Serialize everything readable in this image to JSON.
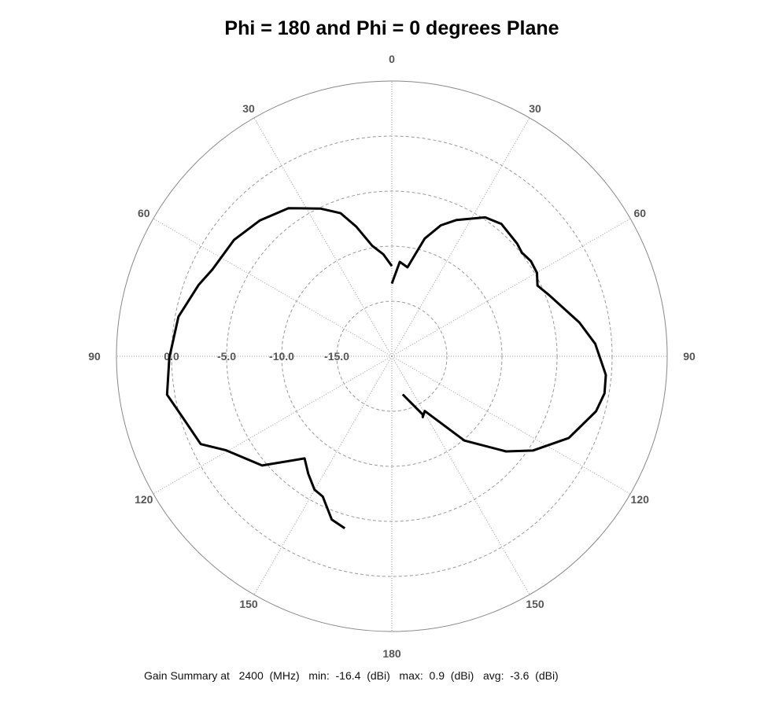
{
  "chart_data": {
    "type": "polar-line",
    "title": "Phi = 180 and Phi = 0 degrees Plane",
    "angle_labels": [
      "0",
      "30",
      "60",
      "90",
      "120",
      "150",
      "180",
      "150",
      "120",
      "90",
      "60",
      "30"
    ],
    "radial_labels": [
      "0.0",
      "-5.0",
      "-10.0",
      "-15.0"
    ],
    "radial_range": [
      -20,
      5
    ],
    "radial_ticks": [
      -15,
      -10,
      -5,
      0
    ],
    "grid": true,
    "line_color": "#000000",
    "series": [
      {
        "side": "right (phi = 0)",
        "theta": [
          0,
          4.8,
          10,
          14.2,
          15.6,
          20.5,
          25.4,
          33.9,
          39.6,
          48,
          51.5,
          55.6,
          60.1,
          64.1,
          68.6,
          79.8,
          86.5,
          95,
          99.9,
          105.1,
          114.8,
          123.8,
          129.8,
          139.3,
          149,
          153.1,
          152.1,
          164.1
        ],
        "gain": [
          -13.4,
          -11.4,
          -11.8,
          -9.8,
          -8.9,
          -7.3,
          -6.3,
          -4.8,
          -4.4,
          -4.7,
          -4.9,
          -4.7,
          -4.8,
          -5.3,
          -4.7,
          -2.7,
          -1.5,
          -0.5,
          -0.4,
          -0.8,
          -2.3,
          -4.6,
          -6.5,
          -9.9,
          -14.2,
          -13.8,
          -14.0,
          -16.4
        ]
      },
      {
        "side": "left (phi = 180)",
        "theta": [
          0,
          4.8,
          10.1,
          15.3,
          19.7,
          25.8,
          34.9,
          44.2,
          53.6,
          64.2,
          69.7,
          79.5,
          90.4,
          99.7,
          106.6,
          114.7,
          119.6,
          130.1,
          139.5,
          144.6,
          149.9,
          153.8,
          159.8,
          164.7
        ],
        "gain": [
          -11.8,
          -10.7,
          -9.8,
          -7.8,
          -6.2,
          -5.1,
          -3.6,
          -2.8,
          -2.2,
          -1.9,
          -1.3,
          -0.3,
          0.2,
          0.7,
          -0.25,
          -0.9,
          -2.7,
          -4.6,
          -7.8,
          -6.9,
          -6.0,
          -5.8,
          -4.2,
          -3.8
        ]
      }
    ]
  },
  "summary": {
    "text": "Gain Summary at   2400  (MHz)   min:  -16.4  (dBi)   max:  0.9  (dBi)   avg:  -3.6  (dBi)",
    "frequency": "2400",
    "min": "-16.4",
    "max": "0.9",
    "avg": "-3.6"
  }
}
